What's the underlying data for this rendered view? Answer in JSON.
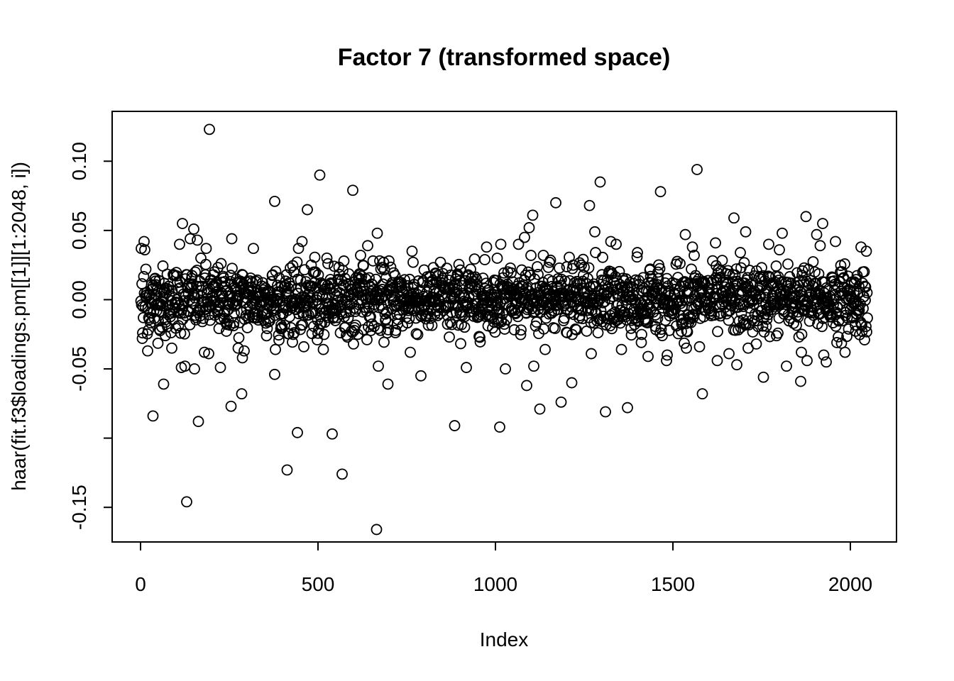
{
  "chart_data": {
    "type": "scatter",
    "title": "Factor 7 (transformed space)",
    "xlabel": "Index",
    "ylabel": "haar(fit.f3$loadings.pm[[1]][1:2048, i])",
    "xlim": [
      -80,
      2130
    ],
    "ylim": [
      -0.175,
      0.136
    ],
    "xticks": [
      0,
      500,
      1000,
      1500,
      2000
    ],
    "xtick_labels": [
      "0",
      "500",
      "1000",
      "1500",
      "2000"
    ],
    "yticks": [
      -0.15,
      -0.1,
      -0.05,
      0.0,
      0.05,
      0.1
    ],
    "ytick_labels": [
      "-0.15",
      "",
      "-0.05",
      "0.00",
      "0.05",
      "0.10"
    ],
    "grid": false,
    "marker": "open-circle",
    "n_points": 2048,
    "noise_sd": 0.012,
    "points": [
      {
        "x": 1,
        "y": -0.001
      },
      {
        "x": 2,
        "y": 0.037
      },
      {
        "x": 5,
        "y": -0.028
      },
      {
        "x": 6,
        "y": -0.024
      },
      {
        "x": 8,
        "y": -0.013
      },
      {
        "x": 10,
        "y": 0.042
      },
      {
        "x": 12,
        "y": 0.036
      },
      {
        "x": 15,
        "y": 0.022
      },
      {
        "x": 20,
        "y": -0.037
      },
      {
        "x": 22,
        "y": -0.022
      },
      {
        "x": 35,
        "y": -0.084
      },
      {
        "x": 65,
        "y": -0.061
      },
      {
        "x": 70,
        "y": -0.026
      },
      {
        "x": 88,
        "y": -0.035
      },
      {
        "x": 110,
        "y": 0.04
      },
      {
        "x": 115,
        "y": -0.049
      },
      {
        "x": 118,
        "y": 0.055
      },
      {
        "x": 125,
        "y": -0.048
      },
      {
        "x": 130,
        "y": -0.146
      },
      {
        "x": 140,
        "y": 0.044
      },
      {
        "x": 150,
        "y": 0.051
      },
      {
        "x": 152,
        "y": -0.05
      },
      {
        "x": 160,
        "y": 0.043
      },
      {
        "x": 163,
        "y": -0.088
      },
      {
        "x": 180,
        "y": -0.038
      },
      {
        "x": 185,
        "y": 0.037
      },
      {
        "x": 192,
        "y": -0.039
      },
      {
        "x": 194,
        "y": 0.123
      },
      {
        "x": 225,
        "y": -0.049
      },
      {
        "x": 255,
        "y": -0.077
      },
      {
        "x": 257,
        "y": 0.044
      },
      {
        "x": 275,
        "y": -0.035
      },
      {
        "x": 285,
        "y": -0.068
      },
      {
        "x": 287,
        "y": -0.042
      },
      {
        "x": 292,
        "y": -0.037
      },
      {
        "x": 318,
        "y": 0.037
      },
      {
        "x": 378,
        "y": 0.071
      },
      {
        "x": 378,
        "y": -0.054
      },
      {
        "x": 380,
        "y": -0.036
      },
      {
        "x": 395,
        "y": -0.021
      },
      {
        "x": 413,
        "y": -0.123
      },
      {
        "x": 442,
        "y": -0.096
      },
      {
        "x": 445,
        "y": 0.037
      },
      {
        "x": 455,
        "y": 0.042
      },
      {
        "x": 460,
        "y": -0.034
      },
      {
        "x": 470,
        "y": 0.065
      },
      {
        "x": 505,
        "y": 0.09
      },
      {
        "x": 515,
        "y": -0.036
      },
      {
        "x": 525,
        "y": 0.03
      },
      {
        "x": 528,
        "y": 0.026
      },
      {
        "x": 540,
        "y": -0.097
      },
      {
        "x": 568,
        "y": -0.126
      },
      {
        "x": 598,
        "y": 0.079
      },
      {
        "x": 600,
        "y": -0.032
      },
      {
        "x": 620,
        "y": 0.032
      },
      {
        "x": 640,
        "y": 0.039
      },
      {
        "x": 655,
        "y": 0.028
      },
      {
        "x": 665,
        "y": -0.166
      },
      {
        "x": 667,
        "y": 0.048
      },
      {
        "x": 670,
        "y": -0.048
      },
      {
        "x": 695,
        "y": -0.024
      },
      {
        "x": 697,
        "y": -0.061
      },
      {
        "x": 700,
        "y": 0.028
      },
      {
        "x": 760,
        "y": -0.038
      },
      {
        "x": 765,
        "y": 0.035
      },
      {
        "x": 768,
        "y": 0.027
      },
      {
        "x": 790,
        "y": -0.055
      },
      {
        "x": 845,
        "y": 0.027
      },
      {
        "x": 870,
        "y": -0.027
      },
      {
        "x": 885,
        "y": -0.091
      },
      {
        "x": 918,
        "y": -0.049
      },
      {
        "x": 930,
        "y": 0.022
      },
      {
        "x": 975,
        "y": 0.038
      },
      {
        "x": 1012,
        "y": -0.092
      },
      {
        "x": 1015,
        "y": 0.04
      },
      {
        "x": 1028,
        "y": -0.05
      },
      {
        "x": 1065,
        "y": 0.04
      },
      {
        "x": 1082,
        "y": 0.045
      },
      {
        "x": 1088,
        "y": -0.062
      },
      {
        "x": 1095,
        "y": 0.052
      },
      {
        "x": 1105,
        "y": 0.061
      },
      {
        "x": 1108,
        "y": -0.048
      },
      {
        "x": 1125,
        "y": -0.079
      },
      {
        "x": 1135,
        "y": 0.032
      },
      {
        "x": 1140,
        "y": -0.036
      },
      {
        "x": 1170,
        "y": 0.07
      },
      {
        "x": 1185,
        "y": -0.074
      },
      {
        "x": 1215,
        "y": -0.06
      },
      {
        "x": 1265,
        "y": 0.068
      },
      {
        "x": 1270,
        "y": -0.039
      },
      {
        "x": 1280,
        "y": 0.049
      },
      {
        "x": 1282,
        "y": 0.034
      },
      {
        "x": 1295,
        "y": 0.085
      },
      {
        "x": 1310,
        "y": -0.081
      },
      {
        "x": 1325,
        "y": 0.042
      },
      {
        "x": 1340,
        "y": 0.04
      },
      {
        "x": 1355,
        "y": -0.036
      },
      {
        "x": 1372,
        "y": -0.078
      },
      {
        "x": 1400,
        "y": 0.034
      },
      {
        "x": 1430,
        "y": -0.041
      },
      {
        "x": 1465,
        "y": 0.078
      },
      {
        "x": 1470,
        "y": -0.026
      },
      {
        "x": 1482,
        "y": -0.044
      },
      {
        "x": 1484,
        "y": -0.04
      },
      {
        "x": 1535,
        "y": 0.047
      },
      {
        "x": 1538,
        "y": -0.035
      },
      {
        "x": 1555,
        "y": 0.038
      },
      {
        "x": 1560,
        "y": 0.032
      },
      {
        "x": 1568,
        "y": 0.094
      },
      {
        "x": 1575,
        "y": -0.034
      },
      {
        "x": 1583,
        "y": -0.068
      },
      {
        "x": 1620,
        "y": 0.041
      },
      {
        "x": 1625,
        "y": -0.044
      },
      {
        "x": 1658,
        "y": -0.039
      },
      {
        "x": 1672,
        "y": 0.059
      },
      {
        "x": 1680,
        "y": -0.047
      },
      {
        "x": 1690,
        "y": 0.034
      },
      {
        "x": 1705,
        "y": 0.049
      },
      {
        "x": 1712,
        "y": -0.035
      },
      {
        "x": 1735,
        "y": -0.032
      },
      {
        "x": 1755,
        "y": -0.056
      },
      {
        "x": 1770,
        "y": 0.04
      },
      {
        "x": 1800,
        "y": 0.036
      },
      {
        "x": 1808,
        "y": 0.048
      },
      {
        "x": 1820,
        "y": -0.048
      },
      {
        "x": 1860,
        "y": -0.059
      },
      {
        "x": 1862,
        "y": -0.038
      },
      {
        "x": 1875,
        "y": 0.06
      },
      {
        "x": 1878,
        "y": -0.044
      },
      {
        "x": 1905,
        "y": 0.047
      },
      {
        "x": 1915,
        "y": 0.039
      },
      {
        "x": 1922,
        "y": 0.055
      },
      {
        "x": 1925,
        "y": -0.04
      },
      {
        "x": 1932,
        "y": -0.045
      },
      {
        "x": 1958,
        "y": 0.042
      },
      {
        "x": 1962,
        "y": -0.031
      },
      {
        "x": 1985,
        "y": -0.038
      },
      {
        "x": 2030,
        "y": 0.038
      },
      {
        "x": 2040,
        "y": -0.029
      },
      {
        "x": 2045,
        "y": 0.035
      }
    ]
  }
}
